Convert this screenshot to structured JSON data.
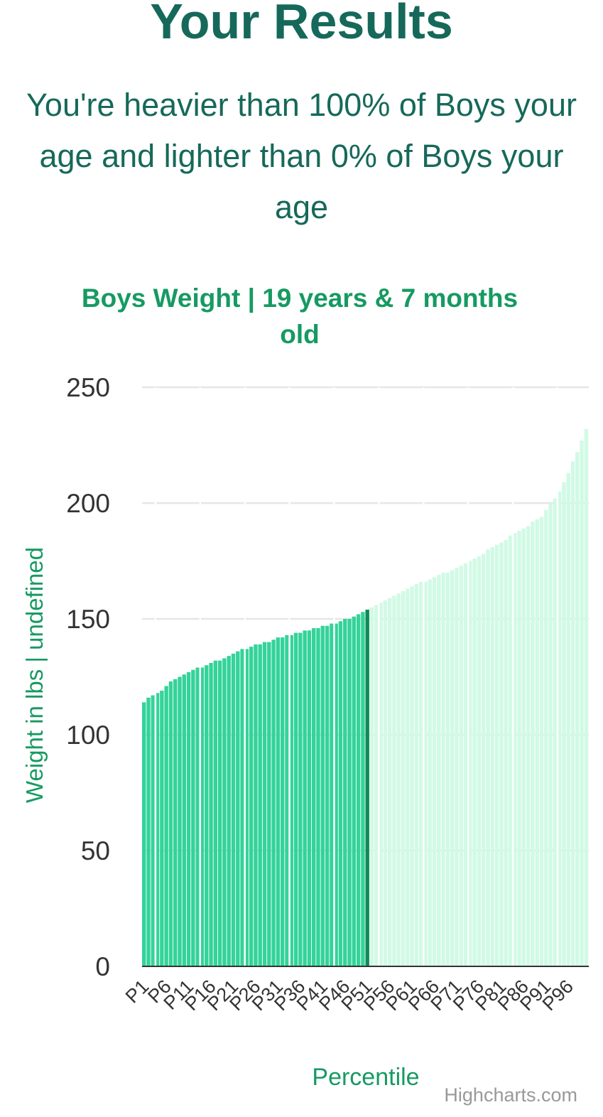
{
  "header": {
    "title": "Your Results",
    "summary": "You're heavier than 100% of Boys your age and lighter than 0% of Boys your age"
  },
  "credits": "Highcharts.com",
  "colors": {
    "heading": "#16695a",
    "chart_title": "#169a62",
    "bar_selected_range": "#34d399",
    "bar_highlight": "#0f8a56",
    "bar_rest": "#d1fae5",
    "gridline": "#e6e6e6",
    "axis_line": "#333333"
  },
  "chart_data": {
    "type": "bar",
    "title": "Boys Weight | 19 years & 7 months old",
    "xlabel": "Percentile",
    "ylabel": "Weight in lbs | undefined",
    "ylim": [
      0,
      250
    ],
    "yticks": [
      0,
      50,
      100,
      150,
      200,
      250
    ],
    "xtick_labels": [
      "P1",
      "P6",
      "P11",
      "P16",
      "P21",
      "P26",
      "P31",
      "P36",
      "P41",
      "P46",
      "P51",
      "P56",
      "P61",
      "P66",
      "P71",
      "P76",
      "P81",
      "P86",
      "P91",
      "P96"
    ],
    "grid": true,
    "highlight_category": "P51",
    "categories": [
      "P1",
      "P2",
      "P3",
      "P4",
      "P5",
      "P6",
      "P7",
      "P8",
      "P9",
      "P10",
      "P11",
      "P12",
      "P13",
      "P14",
      "P15",
      "P16",
      "P17",
      "P18",
      "P19",
      "P20",
      "P21",
      "P22",
      "P23",
      "P24",
      "P25",
      "P26",
      "P27",
      "P28",
      "P29",
      "P30",
      "P31",
      "P32",
      "P33",
      "P34",
      "P35",
      "P36",
      "P37",
      "P38",
      "P39",
      "P40",
      "P41",
      "P42",
      "P43",
      "P44",
      "P45",
      "P46",
      "P47",
      "P48",
      "P49",
      "P50",
      "P51",
      "P52",
      "P53",
      "P54",
      "P55",
      "P56",
      "P57",
      "P58",
      "P59",
      "P60",
      "P61",
      "P62",
      "P63",
      "P64",
      "P65",
      "P66",
      "P67",
      "P68",
      "P69",
      "P70",
      "P71",
      "P72",
      "P73",
      "P74",
      "P75",
      "P76",
      "P77",
      "P78",
      "P79",
      "P80",
      "P81",
      "P82",
      "P83",
      "P84",
      "P85",
      "P86",
      "P87",
      "P88",
      "P89",
      "P90",
      "P91",
      "P92",
      "P93",
      "P94",
      "P95",
      "P96",
      "P97",
      "P98",
      "P99",
      "P100"
    ],
    "values": [
      114,
      116,
      117,
      118,
      119,
      121,
      123,
      124,
      125,
      126,
      127,
      128,
      129,
      129,
      130,
      131,
      132,
      132,
      133,
      134,
      135,
      136,
      137,
      137,
      138,
      139,
      139,
      140,
      140,
      141,
      142,
      142,
      143,
      143,
      144,
      144,
      145,
      145,
      146,
      146,
      147,
      147,
      148,
      148,
      149,
      150,
      150,
      151,
      152,
      153,
      154,
      155,
      156,
      157,
      158,
      159,
      160,
      161,
      162,
      163,
      164,
      165,
      166,
      166,
      167,
      168,
      169,
      170,
      170,
      171,
      172,
      173,
      174,
      175,
      176,
      177,
      178,
      180,
      181,
      182,
      183,
      184,
      186,
      187,
      188,
      189,
      190,
      192,
      193,
      194,
      197,
      200,
      202,
      205,
      209,
      213,
      218,
      222,
      227,
      232
    ]
  }
}
